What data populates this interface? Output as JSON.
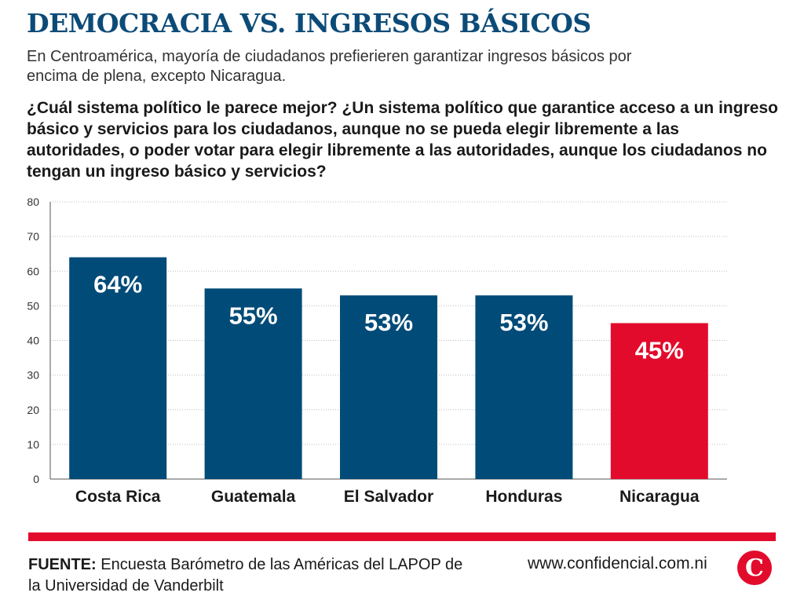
{
  "header": {
    "title": "DEMOCRACIA VS. INGRESOS BÁSICOS",
    "subtitle": "En Centroamérica, mayoría de ciudadanos prefierieren garantizar ingresos básicos por encima de plena, excepto Nicaragua.",
    "question": "¿Cuál sistema político le parece mejor? ¿Un sistema político que garantice acceso a un ingreso básico y servicios para los ciudadanos, aunque no se pueda elegir libremente a las autoridades, o poder votar para elegir libremente a las autoridades, aunque los ciudadanos no tengan un ingreso básico y servicios?"
  },
  "chart_data": {
    "type": "bar",
    "categories": [
      "Costa Rica",
      "Guatemala",
      "El Salvador",
      "Honduras",
      "Nicaragua"
    ],
    "values": [
      64,
      55,
      53,
      53,
      45
    ],
    "data_labels": [
      "64%",
      "55%",
      "53%",
      "53%",
      "45%"
    ],
    "ylim": [
      0,
      80
    ],
    "yticks": [
      0,
      10,
      20,
      30,
      40,
      50,
      60,
      70,
      80
    ],
    "grid": true,
    "bar_colors": [
      "#004b78",
      "#004b78",
      "#004b78",
      "#004b78",
      "#e30b2c"
    ]
  },
  "footer": {
    "source_label": "FUENTE:",
    "source_text": "Encuesta Barómetro de las Américas del LAPOP de la Universidad de Vanderbilt",
    "website": "www.confidencial.com.ni",
    "logo_letter": "C",
    "logo_color": "#e30b2c"
  }
}
